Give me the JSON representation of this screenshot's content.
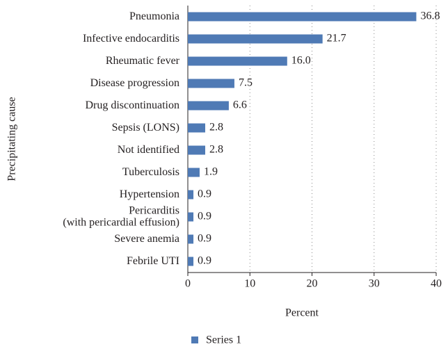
{
  "chart_data": {
    "type": "barh",
    "categories": [
      "Pneumonia",
      "Infective endocarditis",
      "Rheumatic fever",
      "Disease progression",
      "Drug discontinuation",
      "Sepsis (LONS)",
      "Not identified",
      "Tuberculosis",
      "Hypertension",
      "Pericarditis\n(with pericardial effusion)",
      "Severe anemia",
      "Febrile UTI"
    ],
    "series": [
      {
        "name": "Series 1",
        "color": "#4f7ab5",
        "values": [
          36.8,
          21.7,
          16.0,
          7.5,
          6.6,
          2.8,
          2.8,
          1.9,
          0.9,
          0.9,
          0.9,
          0.9
        ],
        "value_labels": [
          "36.8",
          "21.7",
          "16.0",
          "7.5",
          "6.6",
          "2.8",
          "2.8",
          "1.9",
          "0.9",
          "0.9",
          "0.9",
          "0.9"
        ]
      }
    ],
    "xlabel": "Percent",
    "ylabel": "Precipitating cause",
    "xlim": [
      0,
      40
    ],
    "xticks": [
      0,
      10,
      20,
      30,
      40
    ],
    "grid": true,
    "legend": "bottom"
  }
}
